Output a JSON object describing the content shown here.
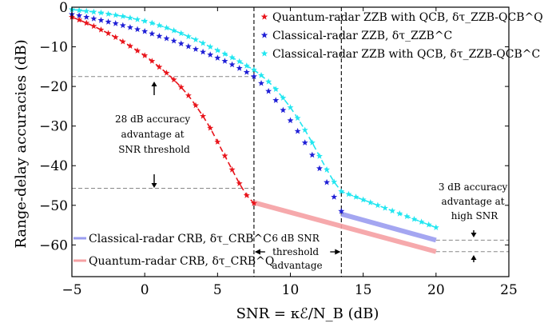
{
  "chart_data": {
    "type": "scatter",
    "xlabel": "SNR  = κℰ/N_B   (dB)",
    "ylabel": "Range-delay accuracies   (dB)",
    "xlim": [
      -5,
      25
    ],
    "ylim": [
      -68,
      0
    ],
    "x_ticks": [
      -5,
      0,
      5,
      10,
      15,
      20,
      25
    ],
    "y_ticks": [
      0,
      -10,
      -20,
      -30,
      -40,
      -50,
      -60
    ],
    "x_tick_labels": [
      "−5",
      "0",
      "5",
      "10",
      "15",
      "20",
      "25"
    ],
    "y_tick_labels": [
      "0",
      "−10",
      "−20",
      "−30",
      "−40",
      "−50",
      "−60"
    ],
    "grid": false,
    "legend_top": {
      "placement": "top-right",
      "entries": [
        {
          "label": "Quantum-radar ZZB with QCB, δτ_ZZB-QCB^Q",
          "color": "#e8141b",
          "marker": "star"
        },
        {
          "label": "Classical-radar ZZB, δτ_ZZB^C",
          "color": "#1f1fd6",
          "marker": "star"
        },
        {
          "label": "Classical-radar ZZB with QCB, δτ_ZZB-QCB^C",
          "color": "#22e6f0",
          "marker": "star"
        }
      ]
    },
    "legend_bottom": {
      "placement": "bottom-left",
      "entries": [
        {
          "label": "Classical-radar CRB, δτ_CRB^C",
          "color": "#9a9cf0",
          "marker": "band"
        },
        {
          "label": "Quantum-radar CRB, δτ_CRB^Q",
          "color": "#f5a0a3",
          "marker": "band"
        }
      ]
    },
    "series": [
      {
        "name": "Quantum-radar ZZB with QCB",
        "color": "#e8141b",
        "x": [
          -5,
          -4.5,
          -4,
          -3.5,
          -3,
          -2.5,
          -2,
          -1.5,
          -1,
          -0.5,
          0,
          0.5,
          1,
          1.5,
          2,
          2.5,
          3,
          3.5,
          4,
          4.5,
          5,
          5.5,
          6,
          6.5,
          7,
          7.5
        ],
        "y": [
          -2.5,
          -3.2,
          -4.0,
          -4.8,
          -5.7,
          -6.6,
          -7.6,
          -8.7,
          -9.8,
          -11.0,
          -12.2,
          -13.6,
          -15.1,
          -16.6,
          -18.3,
          -20.2,
          -22.3,
          -24.8,
          -27.5,
          -30.5,
          -34.0,
          -37.5,
          -41.0,
          -44.5,
          -47.5,
          -49.5
        ]
      },
      {
        "name": "Classical-radar ZZB",
        "color": "#1f1fd6",
        "x": [
          -5,
          -4.5,
          -4,
          -3.5,
          -3,
          -2.5,
          -2,
          -1.5,
          -1,
          -0.5,
          0,
          0.5,
          1,
          1.5,
          2,
          2.5,
          3,
          3.5,
          4,
          4.5,
          5,
          5.5,
          6,
          6.5,
          7,
          7.5,
          8,
          8.5,
          9,
          9.5,
          10,
          10.5,
          11,
          11.5,
          12,
          12.5,
          13,
          13.5
        ],
        "y": [
          -1.8,
          -2.1,
          -2.5,
          -2.9,
          -3.3,
          -3.7,
          -4.1,
          -4.6,
          -5.1,
          -5.6,
          -6.1,
          -6.7,
          -7.3,
          -7.9,
          -8.5,
          -9.2,
          -9.9,
          -10.6,
          -11.3,
          -12.0,
          -12.8,
          -13.6,
          -14.5,
          -15.4,
          -16.4,
          -17.5,
          -19.2,
          -21.2,
          -23.5,
          -26.0,
          -28.6,
          -31.3,
          -34.2,
          -37.3,
          -40.7,
          -44.2,
          -47.9,
          -51.5
        ]
      },
      {
        "name": "Classical-radar ZZB with QCB",
        "color": "#22e6f0",
        "x": [
          -5,
          -4.5,
          -4,
          -3.5,
          -3,
          -2.5,
          -2,
          -1.5,
          -1,
          -0.5,
          0,
          0.5,
          1,
          1.5,
          2,
          2.5,
          3,
          3.5,
          4,
          4.5,
          5,
          5.5,
          6,
          6.5,
          7,
          7.5,
          8,
          8.5,
          9,
          9.5,
          10,
          10.5,
          11,
          11.5,
          12,
          12.5,
          13,
          13.5,
          14,
          14.5,
          15,
          15.5,
          16,
          16.5,
          17,
          17.5,
          18,
          18.5,
          19,
          19.5,
          20
        ],
        "y": [
          -0.6,
          -0.8,
          -1.0,
          -1.2,
          -1.4,
          -1.7,
          -2.0,
          -2.3,
          -2.7,
          -3.1,
          -3.5,
          -4.0,
          -4.6,
          -5.2,
          -5.9,
          -6.6,
          -7.4,
          -8.2,
          -9.1,
          -10.0,
          -10.9,
          -11.8,
          -12.7,
          -13.7,
          -14.8,
          -15.8,
          -17.2,
          -18.8,
          -20.7,
          -22.9,
          -25.3,
          -28.0,
          -31.0,
          -34.2,
          -37.6,
          -41.0,
          -44.1,
          -46.5,
          -47.2,
          -47.9,
          -48.6,
          -49.3,
          -50.0,
          -50.7,
          -51.4,
          -52.1,
          -52.8,
          -53.5,
          -54.2,
          -54.9,
          -55.6
        ]
      },
      {
        "name": "Classical-radar CRB",
        "color": "#9a9cf0",
        "x": [
          13.5,
          20
        ],
        "y": [
          -52.2,
          -58.8
        ]
      },
      {
        "name": "Quantum-radar CRB",
        "color": "#f5a0a3",
        "x": [
          7.5,
          20
        ],
        "y": [
          -49.3,
          -61.7
        ]
      }
    ],
    "guides": {
      "vlines": [
        7.5,
        13.5
      ],
      "hlines": [
        {
          "y": -17.5,
          "x_from": -5,
          "x_to": 7.5
        },
        {
          "y": -45.7,
          "x_from": -5,
          "x_to": 7.5
        },
        {
          "y": -58.8,
          "x_from": 20,
          "x_to": 25
        },
        {
          "y": -61.7,
          "x_from": 20,
          "x_to": 25
        }
      ]
    },
    "annotations": {
      "left": [
        "28 dB accuracy",
        "advantage at",
        "SNR threshold"
      ],
      "middle": [
        "6 dB SNR",
        "threshold",
        "advantage"
      ],
      "right": [
        "3 dB accuracy",
        "advantage at",
        "high SNR"
      ]
    }
  }
}
